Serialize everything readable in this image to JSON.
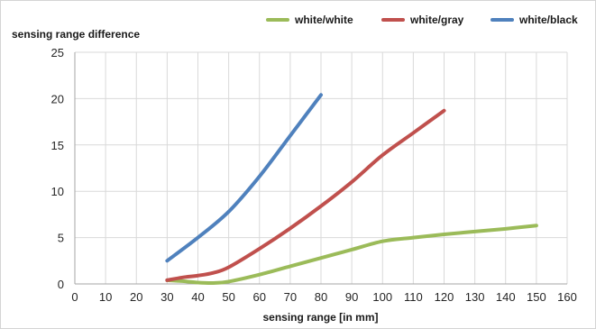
{
  "chart_data": {
    "type": "line",
    "title": "",
    "xlabel": "sensing range [in mm]",
    "ylabel": "sensing range difference",
    "xlim": [
      0,
      160
    ],
    "ylim": [
      0,
      25
    ],
    "xticks": [
      0,
      10,
      20,
      30,
      40,
      50,
      60,
      70,
      80,
      90,
      100,
      110,
      120,
      130,
      140,
      150,
      160
    ],
    "yticks": [
      0,
      5,
      10,
      15,
      20,
      25
    ],
    "grid": true,
    "legend_position": "top-right",
    "series": [
      {
        "name": "white/white",
        "color": "#9bbb59",
        "x": [
          30,
          35,
          40,
          45,
          50,
          60,
          70,
          80,
          90,
          100,
          110,
          120,
          130,
          140,
          150
        ],
        "y": [
          0.4,
          0.3,
          0.15,
          0.1,
          0.25,
          1.0,
          1.9,
          2.8,
          3.7,
          4.6,
          5.0,
          5.35,
          5.65,
          5.95,
          6.3
        ]
      },
      {
        "name": "white/gray",
        "color": "#c0504d",
        "x": [
          30,
          35,
          40,
          45,
          50,
          60,
          70,
          80,
          90,
          100,
          110,
          120
        ],
        "y": [
          0.4,
          0.7,
          0.9,
          1.2,
          1.8,
          3.8,
          6.0,
          8.4,
          11.0,
          13.9,
          16.3,
          18.7
        ]
      },
      {
        "name": "white/black",
        "color": "#4f81bd",
        "x": [
          30,
          40,
          50,
          60,
          70,
          80
        ],
        "y": [
          2.5,
          5.0,
          7.8,
          11.6,
          16.0,
          20.4
        ]
      }
    ]
  }
}
